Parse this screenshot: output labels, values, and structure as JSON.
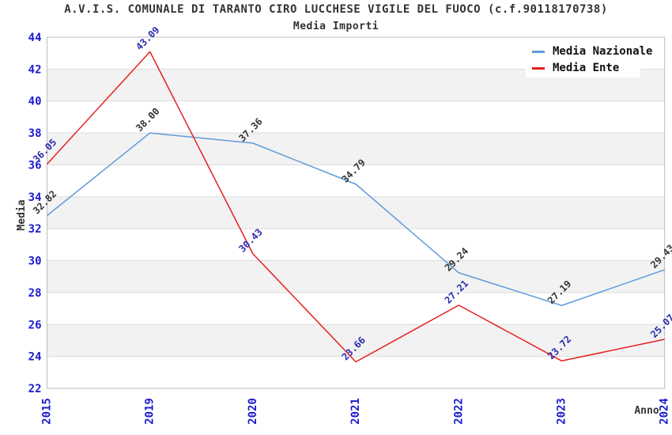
{
  "chart_data": {
    "type": "line",
    "title": "A.V.I.S. COMUNALE DI TARANTO CIRO LUCCHESE VIGILE DEL FUOCO (c.f.90118170738)",
    "subtitle": "Media Importi",
    "xlabel": "Anno",
    "ylabel": "Media",
    "categories": [
      "2015",
      "2019",
      "2020",
      "2021",
      "2022",
      "2023",
      "2024"
    ],
    "series": [
      {
        "name": "Media Nazionale",
        "color": "#5f9bdb",
        "label_color": "#333333",
        "values": [
          32.82,
          38.0,
          37.36,
          34.79,
          29.24,
          27.19,
          29.43
        ],
        "labels": [
          "32.82",
          "38.00",
          "37.36",
          "34.79",
          "29.24",
          "27.19",
          "29.43"
        ]
      },
      {
        "name": "Media Ente",
        "color": "#e62020",
        "label_color": "#2a2ab0",
        "values": [
          36.05,
          43.09,
          30.43,
          23.66,
          27.21,
          23.72,
          25.07
        ],
        "labels": [
          "36.05",
          "43.09",
          "30.43",
          "23.66",
          "27.21",
          "23.72",
          "25.07"
        ]
      }
    ],
    "ylim": [
      22,
      44
    ],
    "ytick_step": 2,
    "yticks": [
      "22",
      "24",
      "26",
      "28",
      "30",
      "32",
      "34",
      "36",
      "38",
      "40",
      "42",
      "44"
    ],
    "grid": true,
    "legend_position": "top-right",
    "colors": {
      "tick_label": "#1c1ccd",
      "axis_text": "#333333",
      "band": "#f2f2f2",
      "gridline": "#dcdcdc",
      "plot_border": "#bdbdbd",
      "background": "#ffffff"
    }
  }
}
